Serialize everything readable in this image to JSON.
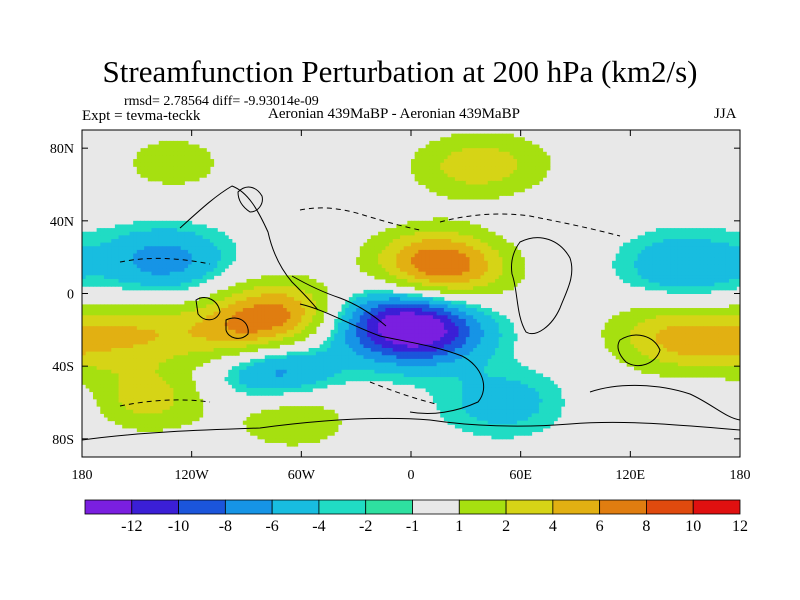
{
  "chart_data": {
    "type": "contour-map",
    "title": "Streamfunction Perturbation at 200 hPa (km2/s)",
    "stats": "rmsd= 2.78564 diff= -9.93014e-09",
    "experiment": "Expt = tevma-teckk",
    "subtitle": "Aeronian 439MaBP - Aeronian 439MaBP",
    "season": "JJA",
    "x_range": [
      -180,
      180
    ],
    "y_range": [
      -90,
      90
    ],
    "x_ticks": [
      {
        "value": -180,
        "label": "180"
      },
      {
        "value": -120,
        "label": "120W"
      },
      {
        "value": -60,
        "label": "60W"
      },
      {
        "value": 0,
        "label": "0"
      },
      {
        "value": 60,
        "label": "60E"
      },
      {
        "value": 120,
        "label": "120E"
      },
      {
        "value": 180,
        "label": "180"
      }
    ],
    "y_ticks": [
      {
        "value": 80,
        "label": "80N"
      },
      {
        "value": 40,
        "label": "40N"
      },
      {
        "value": 0,
        "label": "0"
      },
      {
        "value": -40,
        "label": "40S"
      },
      {
        "value": -80,
        "label": "80S"
      }
    ],
    "levels": [
      -12,
      -10,
      -8,
      -6,
      -4,
      -2,
      -1,
      1,
      2,
      4,
      6,
      8,
      10,
      12
    ],
    "colorbar_colors": [
      "#7a1fe0",
      "#3b1fd6",
      "#1b55db",
      "#1694e6",
      "#18bde0",
      "#20dcc4",
      "#2ee0a0",
      "#e8e8e8",
      "#a6e010",
      "#d6d416",
      "#e2b012",
      "#e07d10",
      "#e04a0e",
      "#e01010"
    ],
    "colorbar_labels": [
      "-12",
      "-10",
      "-8",
      "-6",
      "-4",
      "-2",
      "-1",
      "1",
      "2",
      "4",
      "6",
      "8",
      "10",
      "12"
    ],
    "field_features": [
      {
        "lon": -70,
        "lat": -10,
        "amp": 7
      },
      {
        "lon": -95,
        "lat": -22,
        "amp": 6
      },
      {
        "lon": -150,
        "lat": -22,
        "amp": 5
      },
      {
        "lon": -145,
        "lat": -58,
        "amp": 5
      },
      {
        "lon": -65,
        "lat": -68,
        "amp": 4
      },
      {
        "lon": 10,
        "lat": 18,
        "amp": 7
      },
      {
        "lon": 28,
        "lat": 12,
        "amp": 4
      },
      {
        "lon": 165,
        "lat": -28,
        "amp": 5
      },
      {
        "lon": 135,
        "lat": -22,
        "amp": 4
      },
      {
        "lon": 140,
        "lat": -62,
        "amp": 3
      },
      {
        "lon": 30,
        "lat": 70,
        "amp": 4
      },
      {
        "lon": 55,
        "lat": 72,
        "amp": 2
      },
      {
        "lon": -130,
        "lat": 72,
        "amp": 3
      },
      {
        "lon": 5,
        "lat": -20,
        "amp": -11
      },
      {
        "lon": -20,
        "lat": -15,
        "amp": -4
      },
      {
        "lon": -75,
        "lat": -42,
        "amp": -6
      },
      {
        "lon": -135,
        "lat": 18,
        "amp": -5
      },
      {
        "lon": 150,
        "lat": 15,
        "amp": -4
      },
      {
        "lon": 50,
        "lat": -60,
        "amp": -3
      },
      {
        "lon": 155,
        "lat": -60,
        "amp": -3
      }
    ]
  }
}
